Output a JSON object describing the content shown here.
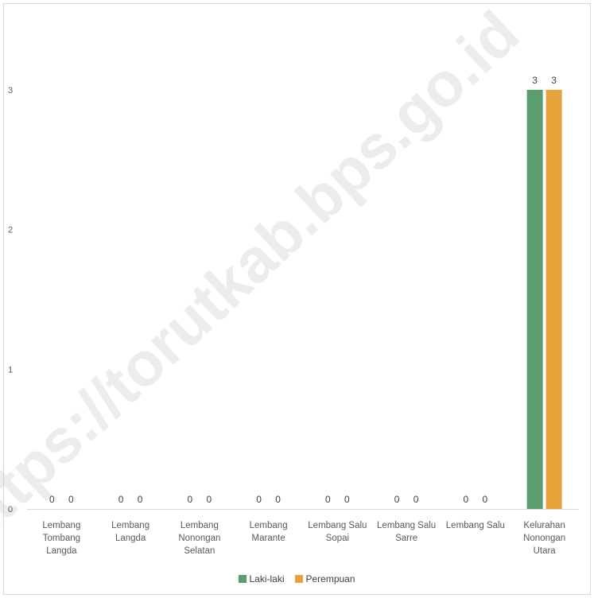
{
  "chart_data": {
    "type": "bar",
    "categories": [
      [
        "Lembang",
        "Tombang",
        "Langda"
      ],
      [
        "Lembang",
        "Langda"
      ],
      [
        "Lembang",
        "Nonongan",
        "Selatan"
      ],
      [
        "Lembang",
        "Marante"
      ],
      [
        "Lembang Salu",
        "Sopai"
      ],
      [
        "Lembang Salu",
        "Sarre"
      ],
      [
        "Lembang Salu"
      ],
      [
        "Kelurahan",
        "Nonongan",
        "Utara"
      ]
    ],
    "series": [
      {
        "name": "Laki-laki",
        "color": "#5a9e6f",
        "values": [
          0,
          0,
          0,
          0,
          0,
          0,
          0,
          3
        ]
      },
      {
        "name": "Perempuan",
        "color": "#e8a23a",
        "values": [
          0,
          0,
          0,
          0,
          0,
          0,
          0,
          3
        ]
      }
    ],
    "ylim": [
      0,
      3.2
    ],
    "yticks": [
      0,
      1,
      2,
      3
    ],
    "grid": false,
    "legend_position": "bottom",
    "data_labels": true
  },
  "watermark": "https://torutkab.bps.go.id"
}
